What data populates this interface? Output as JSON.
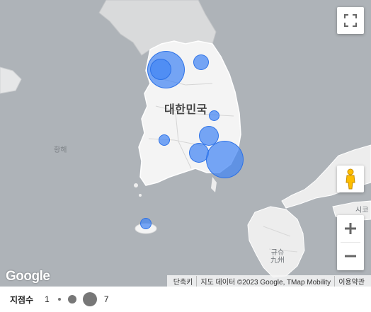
{
  "map": {
    "country_label": "대한민국",
    "sea_label": "황해",
    "japan_labels": {
      "top_right": "시코",
      "kyushu": "규슈\n九州"
    },
    "bubble_color": "#4285F4",
    "bubbles": [
      {
        "id": "seoul-large",
        "size_rank": 7
      },
      {
        "id": "seoul-inner",
        "size_rank": 4
      },
      {
        "id": "gangwon",
        "size_rank": 2
      },
      {
        "id": "gyeongbuk-small",
        "size_rank": 1
      },
      {
        "id": "daegu",
        "size_rank": 3
      },
      {
        "id": "jeonbuk",
        "size_rank": 1
      },
      {
        "id": "gyeongnam",
        "size_rank": 3
      },
      {
        "id": "busan",
        "size_rank": 7
      },
      {
        "id": "jeju",
        "size_rank": 1
      }
    ]
  },
  "controls": {
    "fullscreen_icon": "fullscreen-icon",
    "pegman_icon": "pegman-icon",
    "zoom_in_icon": "plus-icon",
    "zoom_out_icon": "minus-icon"
  },
  "branding": {
    "logo": "Google"
  },
  "attribution": {
    "shortcuts": "단축키",
    "map_data": "지도 데이터 ©2023 Google, TMap Mobility",
    "terms": "이용약관"
  },
  "legend": {
    "title": "지점수",
    "min_label": "1",
    "max_label": "7"
  }
}
